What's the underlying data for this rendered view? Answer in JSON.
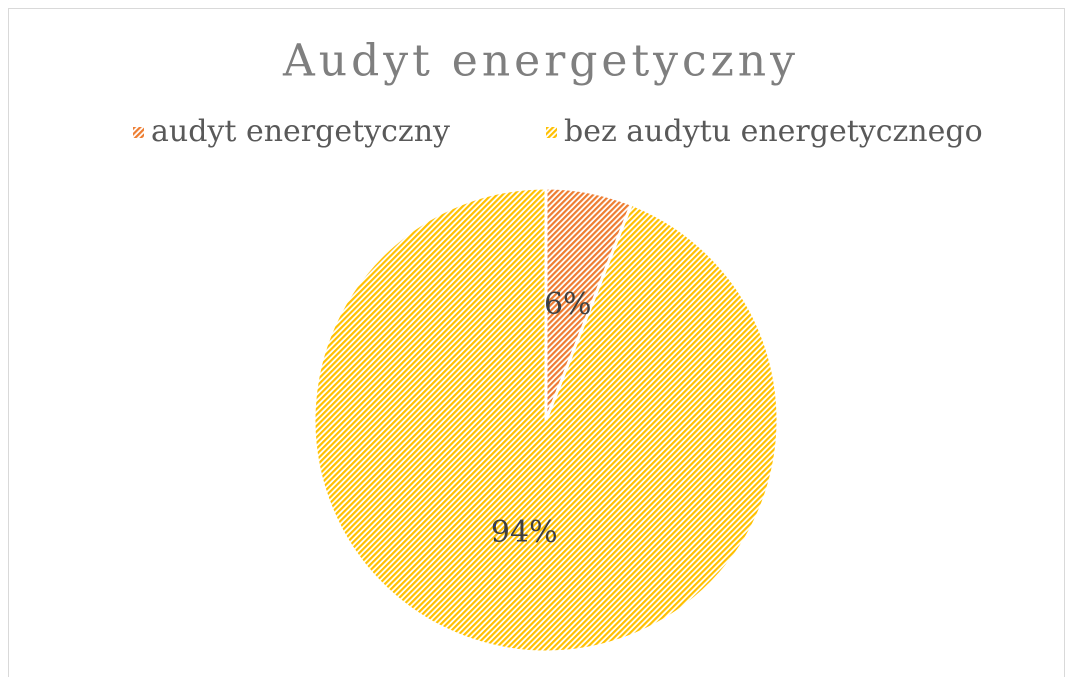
{
  "chart_data": {
    "type": "pie",
    "title": "Audyt energetyczny",
    "categories": [
      "audyt energetyczny",
      "bez audytu energetycznego"
    ],
    "values": [
      6,
      94
    ],
    "value_labels": [
      "6%",
      "94%"
    ],
    "colors": [
      "#ed7d31",
      "#ffc000"
    ],
    "legend": "top"
  }
}
